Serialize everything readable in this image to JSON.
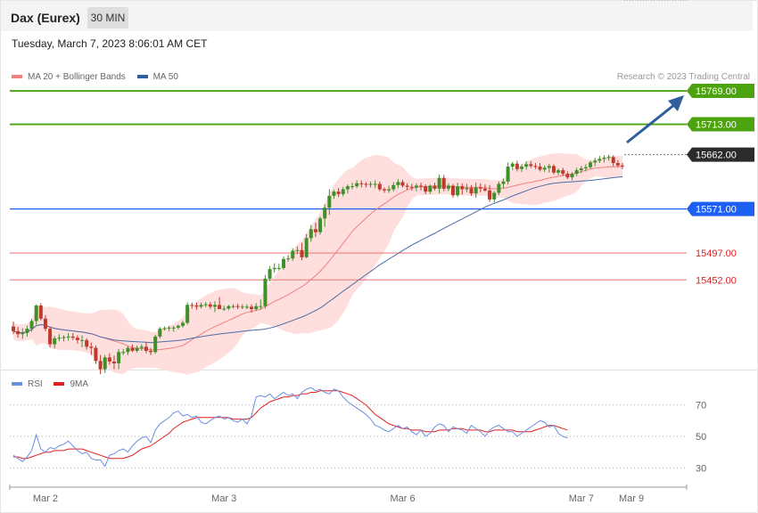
{
  "header": {
    "title": "Dax (Eurex)",
    "timeframe": "30 MIN"
  },
  "datetime": "Tuesday, March 7, 2023 8:06:01 AM CET",
  "legend": {
    "ma20_label": "MA 20 + Bollinger Bands",
    "ma50_label": "MA 50",
    "rsi_label": "RSI",
    "rsi_ma_label": "9MA"
  },
  "credit": "Research © 2023 Trading Central",
  "colors": {
    "up": "#3f8f2a",
    "down": "#c0392b",
    "resistance": "#4da30f",
    "support": "#1c5ff2",
    "pivot_line": "#f08a8a",
    "pivot_text": "#e02020",
    "ma20": "#f08080",
    "ma50": "#4a6fa5",
    "band_fill": "#ffdede",
    "rsi": "#6a8fe0",
    "rsi_ma": "#e02020",
    "arrow": "#2f5f9a",
    "current": "#2b2b2b"
  },
  "chart_data": {
    "type": "candlestick",
    "title": "Dax (Eurex)",
    "timeframe": "30 MIN",
    "x_ticks": [
      "Mar 2",
      "Mar 3",
      "Mar 6",
      "Mar 7",
      "Mar 9"
    ],
    "levels": [
      {
        "value": 15769.0,
        "label": "15769.00",
        "kind": "resistance"
      },
      {
        "value": 15713.0,
        "label": "15713.00",
        "kind": "resistance"
      },
      {
        "value": 15662.0,
        "label": "15662.00",
        "kind": "current"
      },
      {
        "value": 15571.0,
        "label": "15571.00",
        "kind": "pivot"
      },
      {
        "value": 15497.0,
        "label": "15497.00",
        "kind": "support"
      },
      {
        "value": 15452.0,
        "label": "15452.00",
        "kind": "support"
      }
    ],
    "ylim": [
      15306,
      15787
    ],
    "rsi": {
      "levels": [
        70,
        50,
        30
      ],
      "ylim": [
        20,
        80
      ]
    },
    "candles": [
      {
        "o": 15374,
        "h": 15382,
        "l": 15361,
        "c": 15366
      },
      {
        "o": 15366,
        "h": 15373,
        "l": 15355,
        "c": 15361
      },
      {
        "o": 15361,
        "h": 15371,
        "l": 15353,
        "c": 15363
      },
      {
        "o": 15363,
        "h": 15375,
        "l": 15357,
        "c": 15370
      },
      {
        "o": 15370,
        "h": 15387,
        "l": 15365,
        "c": 15383
      },
      {
        "o": 15383,
        "h": 15411,
        "l": 15377,
        "c": 15409
      },
      {
        "o": 15409,
        "h": 15413,
        "l": 15384,
        "c": 15387
      },
      {
        "o": 15387,
        "h": 15393,
        "l": 15366,
        "c": 15370
      },
      {
        "o": 15370,
        "h": 15374,
        "l": 15339,
        "c": 15344
      },
      {
        "o": 15344,
        "h": 15358,
        "l": 15337,
        "c": 15354
      },
      {
        "o": 15354,
        "h": 15361,
        "l": 15349,
        "c": 15355
      },
      {
        "o": 15355,
        "h": 15359,
        "l": 15349,
        "c": 15356
      },
      {
        "o": 15356,
        "h": 15363,
        "l": 15350,
        "c": 15357
      },
      {
        "o": 15357,
        "h": 15363,
        "l": 15351,
        "c": 15355
      },
      {
        "o": 15355,
        "h": 15359,
        "l": 15345,
        "c": 15351
      },
      {
        "o": 15351,
        "h": 15359,
        "l": 15339,
        "c": 15351
      },
      {
        "o": 15351,
        "h": 15354,
        "l": 15335,
        "c": 15340
      },
      {
        "o": 15340,
        "h": 15347,
        "l": 15326,
        "c": 15338
      },
      {
        "o": 15338,
        "h": 15342,
        "l": 15311,
        "c": 15316
      },
      {
        "o": 15316,
        "h": 15326,
        "l": 15294,
        "c": 15302
      },
      {
        "o": 15302,
        "h": 15326,
        "l": 15296,
        "c": 15322
      },
      {
        "o": 15322,
        "h": 15329,
        "l": 15310,
        "c": 15315
      },
      {
        "o": 15315,
        "h": 15325,
        "l": 15302,
        "c": 15312
      },
      {
        "o": 15312,
        "h": 15336,
        "l": 15302,
        "c": 15331
      },
      {
        "o": 15331,
        "h": 15336,
        "l": 15326,
        "c": 15331
      },
      {
        "o": 15331,
        "h": 15341,
        "l": 15326,
        "c": 15338
      },
      {
        "o": 15338,
        "h": 15344,
        "l": 15331,
        "c": 15333
      },
      {
        "o": 15333,
        "h": 15342,
        "l": 15330,
        "c": 15338
      },
      {
        "o": 15338,
        "h": 15344,
        "l": 15333,
        "c": 15340
      },
      {
        "o": 15340,
        "h": 15348,
        "l": 15329,
        "c": 15333
      },
      {
        "o": 15333,
        "h": 15338,
        "l": 15326,
        "c": 15331
      },
      {
        "o": 15331,
        "h": 15360,
        "l": 15328,
        "c": 15357
      },
      {
        "o": 15357,
        "h": 15373,
        "l": 15354,
        "c": 15370
      },
      {
        "o": 15370,
        "h": 15374,
        "l": 15367,
        "c": 15371
      },
      {
        "o": 15371,
        "h": 15375,
        "l": 15366,
        "c": 15372
      },
      {
        "o": 15372,
        "h": 15375,
        "l": 15365,
        "c": 15372
      },
      {
        "o": 15372,
        "h": 15377,
        "l": 15369,
        "c": 15375
      },
      {
        "o": 15375,
        "h": 15383,
        "l": 15372,
        "c": 15380
      },
      {
        "o": 15380,
        "h": 15414,
        "l": 15377,
        "c": 15410
      },
      {
        "o": 15410,
        "h": 15414,
        "l": 15404,
        "c": 15409
      },
      {
        "o": 15409,
        "h": 15414,
        "l": 15402,
        "c": 15407
      },
      {
        "o": 15407,
        "h": 15414,
        "l": 15404,
        "c": 15410
      },
      {
        "o": 15410,
        "h": 15415,
        "l": 15406,
        "c": 15411
      },
      {
        "o": 15411,
        "h": 15415,
        "l": 15403,
        "c": 15407
      },
      {
        "o": 15407,
        "h": 15416,
        "l": 15398,
        "c": 15410
      },
      {
        "o": 15410,
        "h": 15423,
        "l": 15403,
        "c": 15403
      },
      {
        "o": 15403,
        "h": 15409,
        "l": 15400,
        "c": 15404
      },
      {
        "o": 15404,
        "h": 15410,
        "l": 15401,
        "c": 15408
      },
      {
        "o": 15408,
        "h": 15411,
        "l": 15404,
        "c": 15408
      },
      {
        "o": 15408,
        "h": 15412,
        "l": 15403,
        "c": 15407
      },
      {
        "o": 15407,
        "h": 15411,
        "l": 15403,
        "c": 15407
      },
      {
        "o": 15407,
        "h": 15411,
        "l": 15403,
        "c": 15407
      },
      {
        "o": 15407,
        "h": 15411,
        "l": 15397,
        "c": 15403
      },
      {
        "o": 15403,
        "h": 15413,
        "l": 15400,
        "c": 15408
      },
      {
        "o": 15408,
        "h": 15419,
        "l": 15402,
        "c": 15408
      },
      {
        "o": 15408,
        "h": 15460,
        "l": 15404,
        "c": 15454
      },
      {
        "o": 15454,
        "h": 15475,
        "l": 15450,
        "c": 15470
      },
      {
        "o": 15470,
        "h": 15480,
        "l": 15464,
        "c": 15472
      },
      {
        "o": 15472,
        "h": 15479,
        "l": 15468,
        "c": 15472
      },
      {
        "o": 15472,
        "h": 15491,
        "l": 15469,
        "c": 15487
      },
      {
        "o": 15487,
        "h": 15494,
        "l": 15483,
        "c": 15488
      },
      {
        "o": 15488,
        "h": 15505,
        "l": 15484,
        "c": 15501
      },
      {
        "o": 15501,
        "h": 15508,
        "l": 15495,
        "c": 15502
      },
      {
        "o": 15502,
        "h": 15514,
        "l": 15485,
        "c": 15490
      },
      {
        "o": 15490,
        "h": 15529,
        "l": 15488,
        "c": 15522
      },
      {
        "o": 15522,
        "h": 15544,
        "l": 15516,
        "c": 15537
      },
      {
        "o": 15537,
        "h": 15548,
        "l": 15524,
        "c": 15532
      },
      {
        "o": 15532,
        "h": 15558,
        "l": 15528,
        "c": 15555
      },
      {
        "o": 15555,
        "h": 15579,
        "l": 15541,
        "c": 15573
      },
      {
        "o": 15573,
        "h": 15604,
        "l": 15561,
        "c": 15593
      },
      {
        "o": 15593,
        "h": 15603,
        "l": 15588,
        "c": 15600
      },
      {
        "o": 15600,
        "h": 15606,
        "l": 15591,
        "c": 15596
      },
      {
        "o": 15596,
        "h": 15608,
        "l": 15592,
        "c": 15604
      },
      {
        "o": 15604,
        "h": 15612,
        "l": 15597,
        "c": 15609
      },
      {
        "o": 15609,
        "h": 15615,
        "l": 15604,
        "c": 15609
      },
      {
        "o": 15609,
        "h": 15619,
        "l": 15606,
        "c": 15614
      },
      {
        "o": 15614,
        "h": 15619,
        "l": 15607,
        "c": 15613
      },
      {
        "o": 15613,
        "h": 15616,
        "l": 15607,
        "c": 15612
      },
      {
        "o": 15612,
        "h": 15617,
        "l": 15607,
        "c": 15613
      },
      {
        "o": 15613,
        "h": 15619,
        "l": 15606,
        "c": 15613
      },
      {
        "o": 15613,
        "h": 15617,
        "l": 15601,
        "c": 15604
      },
      {
        "o": 15604,
        "h": 15607,
        "l": 15598,
        "c": 15602
      },
      {
        "o": 15602,
        "h": 15610,
        "l": 15598,
        "c": 15604
      },
      {
        "o": 15604,
        "h": 15616,
        "l": 15600,
        "c": 15611
      },
      {
        "o": 15611,
        "h": 15621,
        "l": 15606,
        "c": 15616
      },
      {
        "o": 15616,
        "h": 15620,
        "l": 15607,
        "c": 15610
      },
      {
        "o": 15610,
        "h": 15614,
        "l": 15603,
        "c": 15608
      },
      {
        "o": 15608,
        "h": 15613,
        "l": 15602,
        "c": 15607
      },
      {
        "o": 15607,
        "h": 15614,
        "l": 15601,
        "c": 15610
      },
      {
        "o": 15610,
        "h": 15615,
        "l": 15602,
        "c": 15609
      },
      {
        "o": 15609,
        "h": 15612,
        "l": 15596,
        "c": 15600
      },
      {
        "o": 15600,
        "h": 15612,
        "l": 15596,
        "c": 15610
      },
      {
        "o": 15610,
        "h": 15615,
        "l": 15602,
        "c": 15605
      },
      {
        "o": 15605,
        "h": 15629,
        "l": 15597,
        "c": 15623
      },
      {
        "o": 15623,
        "h": 15628,
        "l": 15601,
        "c": 15605
      },
      {
        "o": 15605,
        "h": 15614,
        "l": 15601,
        "c": 15610
      },
      {
        "o": 15610,
        "h": 15613,
        "l": 15590,
        "c": 15594
      },
      {
        "o": 15594,
        "h": 15615,
        "l": 15591,
        "c": 15609
      },
      {
        "o": 15609,
        "h": 15614,
        "l": 15595,
        "c": 15604
      },
      {
        "o": 15604,
        "h": 15613,
        "l": 15599,
        "c": 15606
      },
      {
        "o": 15606,
        "h": 15611,
        "l": 15593,
        "c": 15597
      },
      {
        "o": 15597,
        "h": 15615,
        "l": 15590,
        "c": 15607
      },
      {
        "o": 15607,
        "h": 15614,
        "l": 15599,
        "c": 15605
      },
      {
        "o": 15605,
        "h": 15612,
        "l": 15600,
        "c": 15602
      },
      {
        "o": 15602,
        "h": 15611,
        "l": 15583,
        "c": 15587
      },
      {
        "o": 15587,
        "h": 15601,
        "l": 15582,
        "c": 15598
      },
      {
        "o": 15598,
        "h": 15617,
        "l": 15594,
        "c": 15613
      },
      {
        "o": 15613,
        "h": 15622,
        "l": 15606,
        "c": 15617
      },
      {
        "o": 15617,
        "h": 15649,
        "l": 15612,
        "c": 15642
      },
      {
        "o": 15642,
        "h": 15650,
        "l": 15636,
        "c": 15647
      },
      {
        "o": 15647,
        "h": 15652,
        "l": 15634,
        "c": 15638
      },
      {
        "o": 15638,
        "h": 15646,
        "l": 15633,
        "c": 15642
      },
      {
        "o": 15642,
        "h": 15651,
        "l": 15637,
        "c": 15646
      },
      {
        "o": 15646,
        "h": 15651,
        "l": 15640,
        "c": 15643
      },
      {
        "o": 15643,
        "h": 15648,
        "l": 15638,
        "c": 15642
      },
      {
        "o": 15642,
        "h": 15648,
        "l": 15634,
        "c": 15637
      },
      {
        "o": 15637,
        "h": 15644,
        "l": 15633,
        "c": 15640
      },
      {
        "o": 15640,
        "h": 15647,
        "l": 15632,
        "c": 15643
      },
      {
        "o": 15643,
        "h": 15646,
        "l": 15629,
        "c": 15632
      },
      {
        "o": 15632,
        "h": 15639,
        "l": 15628,
        "c": 15636
      },
      {
        "o": 15636,
        "h": 15640,
        "l": 15626,
        "c": 15630
      },
      {
        "o": 15630,
        "h": 15634,
        "l": 15621,
        "c": 15624
      },
      {
        "o": 15624,
        "h": 15633,
        "l": 15619,
        "c": 15630
      },
      {
        "o": 15630,
        "h": 15640,
        "l": 15626,
        "c": 15636
      },
      {
        "o": 15636,
        "h": 15643,
        "l": 15631,
        "c": 15639
      },
      {
        "o": 15639,
        "h": 15646,
        "l": 15634,
        "c": 15641
      },
      {
        "o": 15641,
        "h": 15652,
        "l": 15638,
        "c": 15649
      },
      {
        "o": 15649,
        "h": 15657,
        "l": 15643,
        "c": 15652
      },
      {
        "o": 15652,
        "h": 15660,
        "l": 15648,
        "c": 15655
      },
      {
        "o": 15655,
        "h": 15661,
        "l": 15649,
        "c": 15657
      },
      {
        "o": 15657,
        "h": 15662,
        "l": 15652,
        "c": 15658
      },
      {
        "o": 15658,
        "h": 15661,
        "l": 15643,
        "c": 15648
      },
      {
        "o": 15648,
        "h": 15653,
        "l": 15641,
        "c": 15644
      },
      {
        "o": 15644,
        "h": 15648,
        "l": 15638,
        "c": 15643
      }
    ],
    "rsi_values": [
      38,
      36,
      34,
      37,
      41,
      51,
      42,
      40,
      43,
      42,
      44,
      45,
      47,
      44,
      41,
      39,
      40,
      36,
      35,
      35,
      31,
      38,
      39,
      41,
      42,
      40,
      44,
      47,
      49,
      50,
      46,
      54,
      58,
      60,
      62,
      65,
      66,
      63,
      64,
      62,
      63,
      59,
      58,
      60,
      62,
      63,
      61,
      62,
      60,
      59,
      61,
      58,
      63,
      75,
      76,
      75,
      77,
      74,
      76,
      78,
      76,
      77,
      74,
      78,
      80,
      81,
      79,
      80,
      78,
      77,
      80,
      79,
      75,
      72,
      70,
      68,
      66,
      64,
      61,
      57,
      56,
      54,
      53,
      55,
      57,
      55,
      56,
      53,
      51,
      54,
      50,
      52,
      56,
      58,
      57,
      53,
      56,
      55,
      54,
      52,
      57,
      55,
      53,
      50,
      54,
      56,
      57,
      55,
      53,
      53,
      50,
      52,
      54,
      56,
      58,
      60,
      59,
      56,
      57,
      52,
      50,
      49
    ],
    "rsi_ma_values": [
      37,
      37,
      36,
      36,
      37,
      38,
      39,
      40,
      40,
      41,
      41,
      41,
      42,
      42,
      42,
      42,
      41,
      40,
      39,
      38,
      37,
      36,
      36,
      36,
      36,
      37,
      38,
      40,
      42,
      43,
      44,
      46,
      48,
      50,
      52,
      55,
      57,
      59,
      60,
      61,
      62,
      62,
      62,
      62,
      62,
      62,
      62,
      62,
      61,
      61,
      61,
      61,
      62,
      65,
      68,
      70,
      72,
      73,
      74,
      75,
      75,
      76,
      76,
      77,
      77,
      78,
      78,
      79,
      79,
      79,
      79,
      79,
      78,
      77,
      76,
      74,
      72,
      70,
      67,
      64,
      62,
      60,
      58,
      57,
      56,
      55,
      55,
      54,
      54,
      54,
      53,
      53,
      53,
      54,
      54,
      54,
      55,
      55,
      55,
      54,
      54,
      54,
      54,
      53,
      53,
      54,
      54,
      54,
      54,
      54,
      53,
      53,
      53,
      53,
      54,
      55,
      56,
      57,
      57,
      56,
      55,
      54
    ]
  }
}
